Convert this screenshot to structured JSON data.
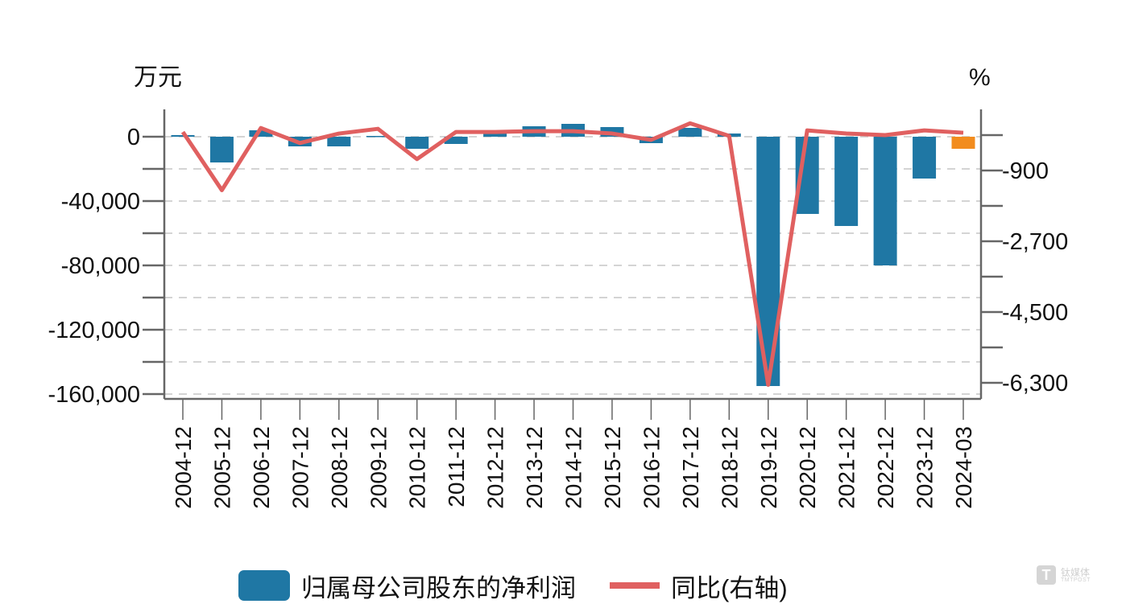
{
  "chart_data": {
    "type": "bar+line",
    "title": "",
    "left_axis": {
      "unit_label": "万元",
      "ticks": [
        0,
        -40000,
        -80000,
        -120000,
        -160000
      ],
      "tick_labels": [
        "0",
        "-40,000",
        "-80,000",
        "-120,000",
        "-160,000"
      ],
      "minor_ticks": [
        -20000,
        -60000,
        -100000,
        -140000
      ],
      "range": [
        -162000,
        16000
      ]
    },
    "right_axis": {
      "unit_label": "%",
      "ticks": [
        0,
        -900,
        -1800,
        -2700,
        -3600,
        -4500,
        -5400,
        -6300
      ],
      "tick_labels": [
        "",
        "-900",
        "",
        "-2,700",
        "",
        "-4,500",
        "",
        "-6,300"
      ],
      "range": [
        -6600,
        700
      ]
    },
    "categories": [
      "2004-12",
      "2005-12",
      "2006-12",
      "2007-12",
      "2008-12",
      "2009-12",
      "2010-12",
      "2011-12",
      "2012-12",
      "2013-12",
      "2014-12",
      "2015-12",
      "2016-12",
      "2017-12",
      "2018-12",
      "2019-12",
      "2020-12",
      "2021-12",
      "2022-12",
      "2023-12",
      "2024-03"
    ],
    "series": [
      {
        "name": "归属母公司股东的净利润",
        "type": "bar",
        "axis": "left",
        "color": "#1f77a4",
        "highlight_color": "#f28c1e",
        "highlight_index": 20,
        "values": [
          1000,
          -16000,
          4000,
          -6000,
          -6000,
          500,
          -7500,
          -4500,
          4000,
          6500,
          8000,
          6000,
          -4000,
          5500,
          2000,
          -155000,
          -48000,
          -55500,
          -80000,
          -26000,
          -7500
        ]
      },
      {
        "name": "同比(右轴)",
        "type": "line",
        "axis": "right",
        "color": "#e06060",
        "values": [
          80,
          -1400,
          180,
          -200,
          40,
          160,
          -610,
          80,
          80,
          100,
          100,
          40,
          -120,
          300,
          -20,
          -6350,
          120,
          40,
          0,
          120,
          60
        ]
      }
    ],
    "legend": [
      "归属母公司股东的净利润",
      "同比(右轴)"
    ],
    "legend_position": "bottom",
    "grid": "horizontal dashed"
  },
  "legend": {
    "bar_label": "归属母公司股东的净利润",
    "line_label": "同比(右轴)"
  },
  "watermark": {
    "logo_glyph": "T",
    "cn": "钛媒体",
    "en": "TMTPOST"
  }
}
